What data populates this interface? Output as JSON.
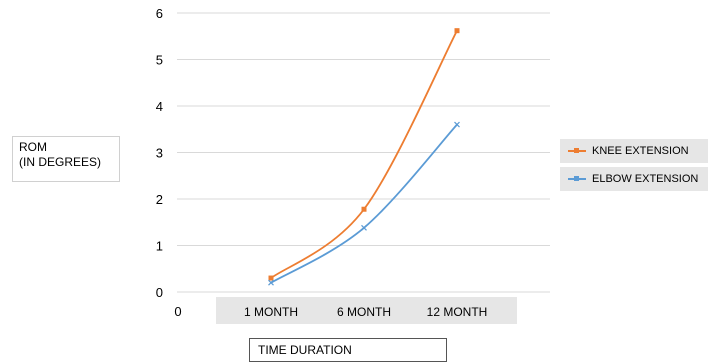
{
  "chart_data": {
    "type": "line",
    "title": "",
    "ylabel": [
      "ROM",
      "(IN DEGREES)"
    ],
    "xlabel": "TIME DURATION",
    "categories": [
      "0",
      "1 MONTH",
      "6 MONTH",
      "12 MONTH"
    ],
    "ylim": [
      0,
      6
    ],
    "yticks": [
      0,
      1,
      2,
      3,
      4,
      5,
      6
    ],
    "grid": true,
    "legend_position": "right",
    "series": [
      {
        "name": "KNEE EXTENSION",
        "color": "#ed7d31",
        "marker": "square",
        "points": [
          {
            "x": "1 MONTH",
            "y": 0.3
          },
          {
            "x": "6 MONTH",
            "y": 1.78
          },
          {
            "x": "12 MONTH",
            "y": 5.62
          }
        ]
      },
      {
        "name": "ELBOW EXTENSION",
        "color": "#5b9bd5",
        "marker": "x",
        "points": [
          {
            "x": "1 MONTH",
            "y": 0.2
          },
          {
            "x": "6 MONTH",
            "y": 1.38
          },
          {
            "x": "12 MONTH",
            "y": 3.6
          }
        ]
      }
    ]
  }
}
